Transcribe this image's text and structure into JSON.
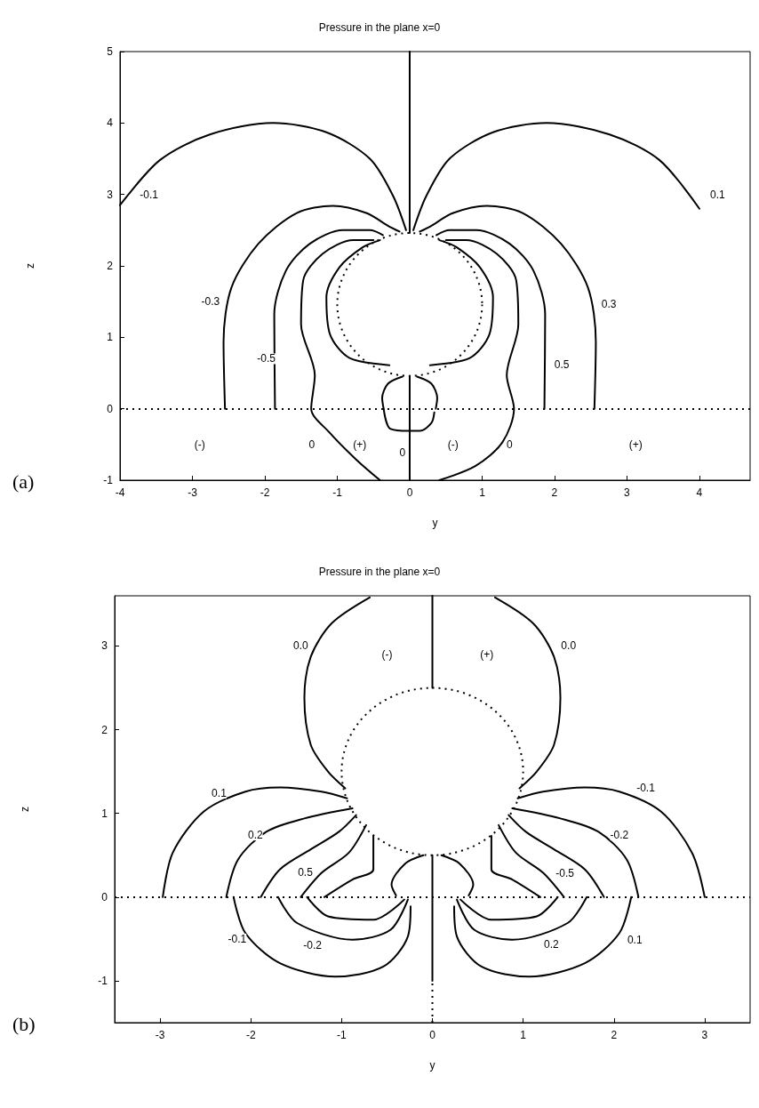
{
  "chart_data": [
    {
      "type": "line",
      "title": "Pressure in the plane x=0",
      "xlabel": "y",
      "ylabel": "z",
      "xlim": [
        -4,
        4.7
      ],
      "ylim": [
        -1,
        5
      ],
      "xticks": [
        -4,
        -3,
        -2,
        -1,
        0,
        1,
        2,
        3,
        4
      ],
      "yticks": [
        -1,
        0,
        1,
        2,
        3,
        4,
        5
      ],
      "grid": false,
      "marker": "none",
      "ref_lines": [
        {
          "axis": "y",
          "value": 0,
          "line_style": "dotted",
          "color": "#000000"
        }
      ],
      "annotations": [
        "(a)",
        {
          "text": "-0.1",
          "x": -3.6,
          "y": 3.0
        },
        {
          "text": "0.1",
          "x": 4.25,
          "y": 3.0
        },
        {
          "text": "-0.3",
          "x": -2.75,
          "y": 1.5
        },
        {
          "text": "0.3",
          "x": 2.75,
          "y": 1.47
        },
        {
          "text": "-0.5",
          "x": -1.98,
          "y": 0.7
        },
        {
          "text": "0.5",
          "x": 2.1,
          "y": 0.62
        },
        {
          "text": "(-)",
          "x": -2.9,
          "y": -0.5
        },
        {
          "text": "0",
          "x": -1.35,
          "y": -0.5
        },
        {
          "text": "(+)",
          "x": -0.69,
          "y": -0.5
        },
        {
          "text": "0",
          "x": -0.1,
          "y": -0.62
        },
        {
          "text": "(-)",
          "x": 0.6,
          "y": -0.5
        },
        {
          "text": "0",
          "x": 1.38,
          "y": -0.5
        },
        {
          "text": "(+)",
          "x": 3.12,
          "y": -0.5
        }
      ],
      "series": [
        {
          "color": "#000000",
          "x": [
            -4,
            -3.45,
            -2.76,
            -1.89,
            -1.15,
            -0.55,
            -0.23,
            -0.05
          ],
          "values": [
            2.85,
            3.48,
            3.84,
            4.0,
            3.87,
            3.5,
            2.98,
            2.5
          ]
        },
        {
          "color": "#000000",
          "x": [
            0.05,
            0.23,
            0.55,
            1.15,
            1.89,
            2.76,
            3.45,
            4.0
          ],
          "values": [
            2.5,
            2.98,
            3.5,
            3.87,
            4.0,
            3.84,
            3.48,
            2.8
          ]
        },
        {
          "color": "#000000",
          "x": [
            -2.55,
            -2.57,
            -2.46,
            -2.09,
            -1.56,
            -1.06,
            -0.6,
            -0.28,
            -0.14
          ],
          "values": [
            0,
            0.94,
            1.7,
            2.31,
            2.74,
            2.84,
            2.74,
            2.55,
            2.48
          ]
        },
        {
          "color": "#000000",
          "x": [
            2.55,
            2.57,
            2.46,
            2.09,
            1.56,
            1.06,
            0.6,
            0.28,
            0.14
          ],
          "values": [
            0,
            0.94,
            1.7,
            2.31,
            2.74,
            2.84,
            2.74,
            2.55,
            2.48
          ]
        },
        {
          "color": "#000000",
          "x": [
            -1.86,
            -1.87,
            -1.71,
            -1.38,
            -0.92,
            -0.55,
            -0.37
          ],
          "values": [
            0,
            1.32,
            1.93,
            2.31,
            2.5,
            2.5,
            2.43
          ]
        },
        {
          "color": "#000000",
          "x": [
            1.86,
            1.87,
            1.71,
            1.38,
            0.92,
            0.55,
            0.37
          ],
          "values": [
            0,
            1.32,
            1.93,
            2.31,
            2.5,
            2.5,
            2.43
          ]
        },
        {
          "color": "#000000",
          "x": [
            -0.5,
            -0.78,
            -1.2,
            -1.47,
            -1.5,
            -1.31,
            -1.36,
            -1.11,
            -0.74,
            -0.41
          ],
          "values": [
            2.36,
            2.36,
            2.17,
            1.8,
            1.18,
            0.47,
            0,
            -0.33,
            -0.71,
            -1
          ]
        },
        {
          "color": "#000000",
          "x": [
            0.5,
            0.78,
            1.2,
            1.47,
            1.5,
            1.34,
            1.44,
            1.28,
            0.91,
            0.41
          ],
          "values": [
            2.36,
            2.36,
            2.17,
            1.8,
            1.18,
            0.47,
            0,
            -0.47,
            -0.8,
            -1
          ]
        },
        {
          "color": "#000000",
          "x": [
            -0.41,
            -0.65,
            -0.97,
            -1.15,
            -1.1,
            -0.83,
            -0.28
          ],
          "values": [
            2.36,
            2.26,
            1.98,
            1.56,
            1.04,
            0.71,
            0.61
          ]
        },
        {
          "color": "#000000",
          "x": [
            0.41,
            0.65,
            0.97,
            1.15,
            1.1,
            0.83,
            0.28
          ],
          "values": [
            2.36,
            2.26,
            1.98,
            1.56,
            1.04,
            0.71,
            0.61
          ]
        },
        {
          "color": "#000000",
          "x": [
            -0.1,
            -0.3,
            -0.38,
            -0.36
          ],
          "values": [
            0.45,
            0.35,
            0.15,
            0
          ]
        },
        {
          "color": "#000000",
          "x": [
            0.1,
            0.3,
            0.38,
            0.36
          ],
          "values": [
            0.45,
            0.35,
            0.15,
            0
          ]
        },
        {
          "color": "#000000",
          "x": [
            -0.36,
            -0.27,
            0,
            0.14,
            0.3,
            0.34
          ],
          "values": [
            0,
            -0.28,
            -0.31,
            -0.31,
            -0.2,
            -0.05
          ]
        },
        {
          "color": "#000000",
          "x": [
            0,
            0
          ],
          "values": [
            -1,
            0.46
          ]
        },
        {
          "color": "#000000",
          "x": [
            0,
            0
          ],
          "values": [
            2.46,
            5
          ]
        }
      ]
    },
    {
      "type": "line",
      "title": "Pressure in the plane x=0",
      "xlabel": "y",
      "ylabel": "z",
      "xlim": [
        -3.5,
        3.5
      ],
      "ylim": [
        -1.5,
        3.6
      ],
      "xticks": [
        -3,
        -2,
        -1,
        0,
        1,
        2,
        3
      ],
      "yticks": [
        -1,
        0,
        1,
        2,
        3
      ],
      "grid": false,
      "marker": "none",
      "ref_lines": [
        {
          "axis": "y",
          "value": 0,
          "line_style": "dotted",
          "color": "#000000"
        }
      ],
      "annotations": [
        "(b)",
        {
          "text": "0.0",
          "x": -1.45,
          "y": 3.0
        },
        {
          "text": "(-)",
          "x": -0.5,
          "y": 2.9
        },
        {
          "text": "(+)",
          "x": 0.6,
          "y": 2.9
        },
        {
          "text": "0.0",
          "x": 1.5,
          "y": 3.0
        },
        {
          "text": "0.1",
          "x": -2.35,
          "y": 1.24
        },
        {
          "text": "-0.1",
          "x": 2.35,
          "y": 1.3
        },
        {
          "text": "0.2",
          "x": -1.95,
          "y": 0.74
        },
        {
          "text": "-0.2",
          "x": 2.06,
          "y": 0.74
        },
        {
          "text": "0.5",
          "x": -1.4,
          "y": 0.3
        },
        {
          "text": "-0.5",
          "x": 1.46,
          "y": 0.29
        },
        {
          "text": "-0.1",
          "x": -2.15,
          "y": -0.5
        },
        {
          "text": "-0.2",
          "x": -1.32,
          "y": -0.58
        },
        {
          "text": "0.2",
          "x": 1.31,
          "y": -0.57
        },
        {
          "text": "0.1",
          "x": 2.23,
          "y": -0.51
        }
      ],
      "series": [
        {
          "color": "#000000",
          "x": [
            -0.69,
            -1.11,
            -1.34,
            -1.41,
            -1.34,
            -1.15,
            -0.96
          ],
          "values": [
            3.58,
            3.27,
            2.87,
            2.38,
            1.82,
            1.5,
            1.3
          ]
        },
        {
          "color": "#000000",
          "x": [
            0.69,
            1.11,
            1.34,
            1.41,
            1.34,
            1.15,
            0.96
          ],
          "values": [
            3.58,
            3.27,
            2.87,
            2.38,
            1.82,
            1.5,
            1.3
          ]
        },
        {
          "color": "#000000",
          "x": [
            -2.97,
            -2.86,
            -2.52,
            -2.06,
            -1.68,
            -1.22,
            -0.94
          ],
          "values": [
            0,
            0.53,
            1.02,
            1.26,
            1.31,
            1.26,
            1.18
          ]
        },
        {
          "color": "#000000",
          "x": [
            3.0,
            2.86,
            2.52,
            2.06,
            1.68,
            1.22,
            0.94
          ],
          "values": [
            0,
            0.53,
            1.02,
            1.26,
            1.31,
            1.26,
            1.18
          ]
        },
        {
          "color": "#000000",
          "x": [
            -2.27,
            -2.14,
            -1.83,
            -1.41,
            -0.88
          ],
          "values": [
            0,
            0.45,
            0.78,
            0.94,
            1.06
          ]
        },
        {
          "color": "#000000",
          "x": [
            2.27,
            2.14,
            1.83,
            1.41,
            0.88
          ],
          "values": [
            0,
            0.45,
            0.78,
            0.94,
            1.06
          ]
        },
        {
          "color": "#000000",
          "x": [
            -1.89,
            -1.68,
            -1.34,
            -1.03,
            -0.84
          ],
          "values": [
            0,
            0.33,
            0.57,
            0.78,
            0.98
          ]
        },
        {
          "color": "#000000",
          "x": [
            1.89,
            1.68,
            1.34,
            1.03,
            0.84
          ],
          "values": [
            0,
            0.33,
            0.57,
            0.78,
            0.98
          ]
        },
        {
          "color": "#000000",
          "x": [
            -1.45,
            -1.22,
            -0.92,
            -0.73
          ],
          "values": [
            0,
            0.29,
            0.53,
            0.86
          ]
        },
        {
          "color": "#000000",
          "x": [
            1.45,
            1.22,
            0.92,
            0.73
          ],
          "values": [
            0,
            0.29,
            0.53,
            0.86
          ]
        },
        {
          "color": "#000000",
          "x": [
            -1.19,
            -0.88,
            -0.65,
            -0.65
          ],
          "values": [
            0,
            0.21,
            0.33,
            0.73
          ]
        },
        {
          "color": "#000000",
          "x": [
            1.19,
            0.88,
            0.65,
            0.65
          ],
          "values": [
            0,
            0.21,
            0.33,
            0.73
          ]
        },
        {
          "color": "#000000",
          "x": [
            -2.19,
            -2.06,
            -1.68,
            -1.07,
            -0.54,
            -0.27,
            -0.24
          ],
          "values": [
            0,
            -0.43,
            -0.79,
            -0.95,
            -0.83,
            -0.47,
            -0.11
          ]
        },
        {
          "color": "#000000",
          "x": [
            2.19,
            2.06,
            1.68,
            1.07,
            0.54,
            0.27,
            0.24
          ],
          "values": [
            0,
            -0.43,
            -0.79,
            -0.95,
            -0.83,
            -0.47,
            -0.11
          ]
        },
        {
          "color": "#000000",
          "x": [
            -1.7,
            -1.49,
            -0.88,
            -0.46,
            -0.27
          ],
          "values": [
            0,
            -0.31,
            -0.51,
            -0.39,
            -0.03
          ]
        },
        {
          "color": "#000000",
          "x": [
            1.7,
            1.49,
            0.88,
            0.46,
            0.27
          ],
          "values": [
            0,
            -0.31,
            -0.51,
            -0.39,
            -0.03
          ]
        },
        {
          "color": "#000000",
          "x": [
            -1.38,
            -1.15,
            -0.65,
            -0.31
          ],
          "values": [
            0,
            -0.23,
            -0.27,
            -0.03
          ]
        },
        {
          "color": "#000000",
          "x": [
            1.38,
            1.15,
            0.65,
            0.31
          ],
          "values": [
            0,
            -0.23,
            -0.27,
            -0.03
          ]
        },
        {
          "color": "#000000",
          "x": [
            -0.1,
            -0.3,
            -0.45,
            -0.4
          ],
          "values": [
            0.5,
            0.4,
            0.15,
            0.02
          ]
        },
        {
          "color": "#000000",
          "x": [
            0.1,
            0.3,
            0.45,
            0.4
          ],
          "values": [
            0.5,
            0.4,
            0.15,
            0.02
          ]
        },
        {
          "color": "#000000",
          "x": [
            0,
            0
          ],
          "values": [
            -1,
            0.5
          ]
        },
        {
          "color": "#000000",
          "x": [
            0,
            0
          ],
          "values": [
            2.5,
            3.6
          ]
        }
      ]
    }
  ]
}
